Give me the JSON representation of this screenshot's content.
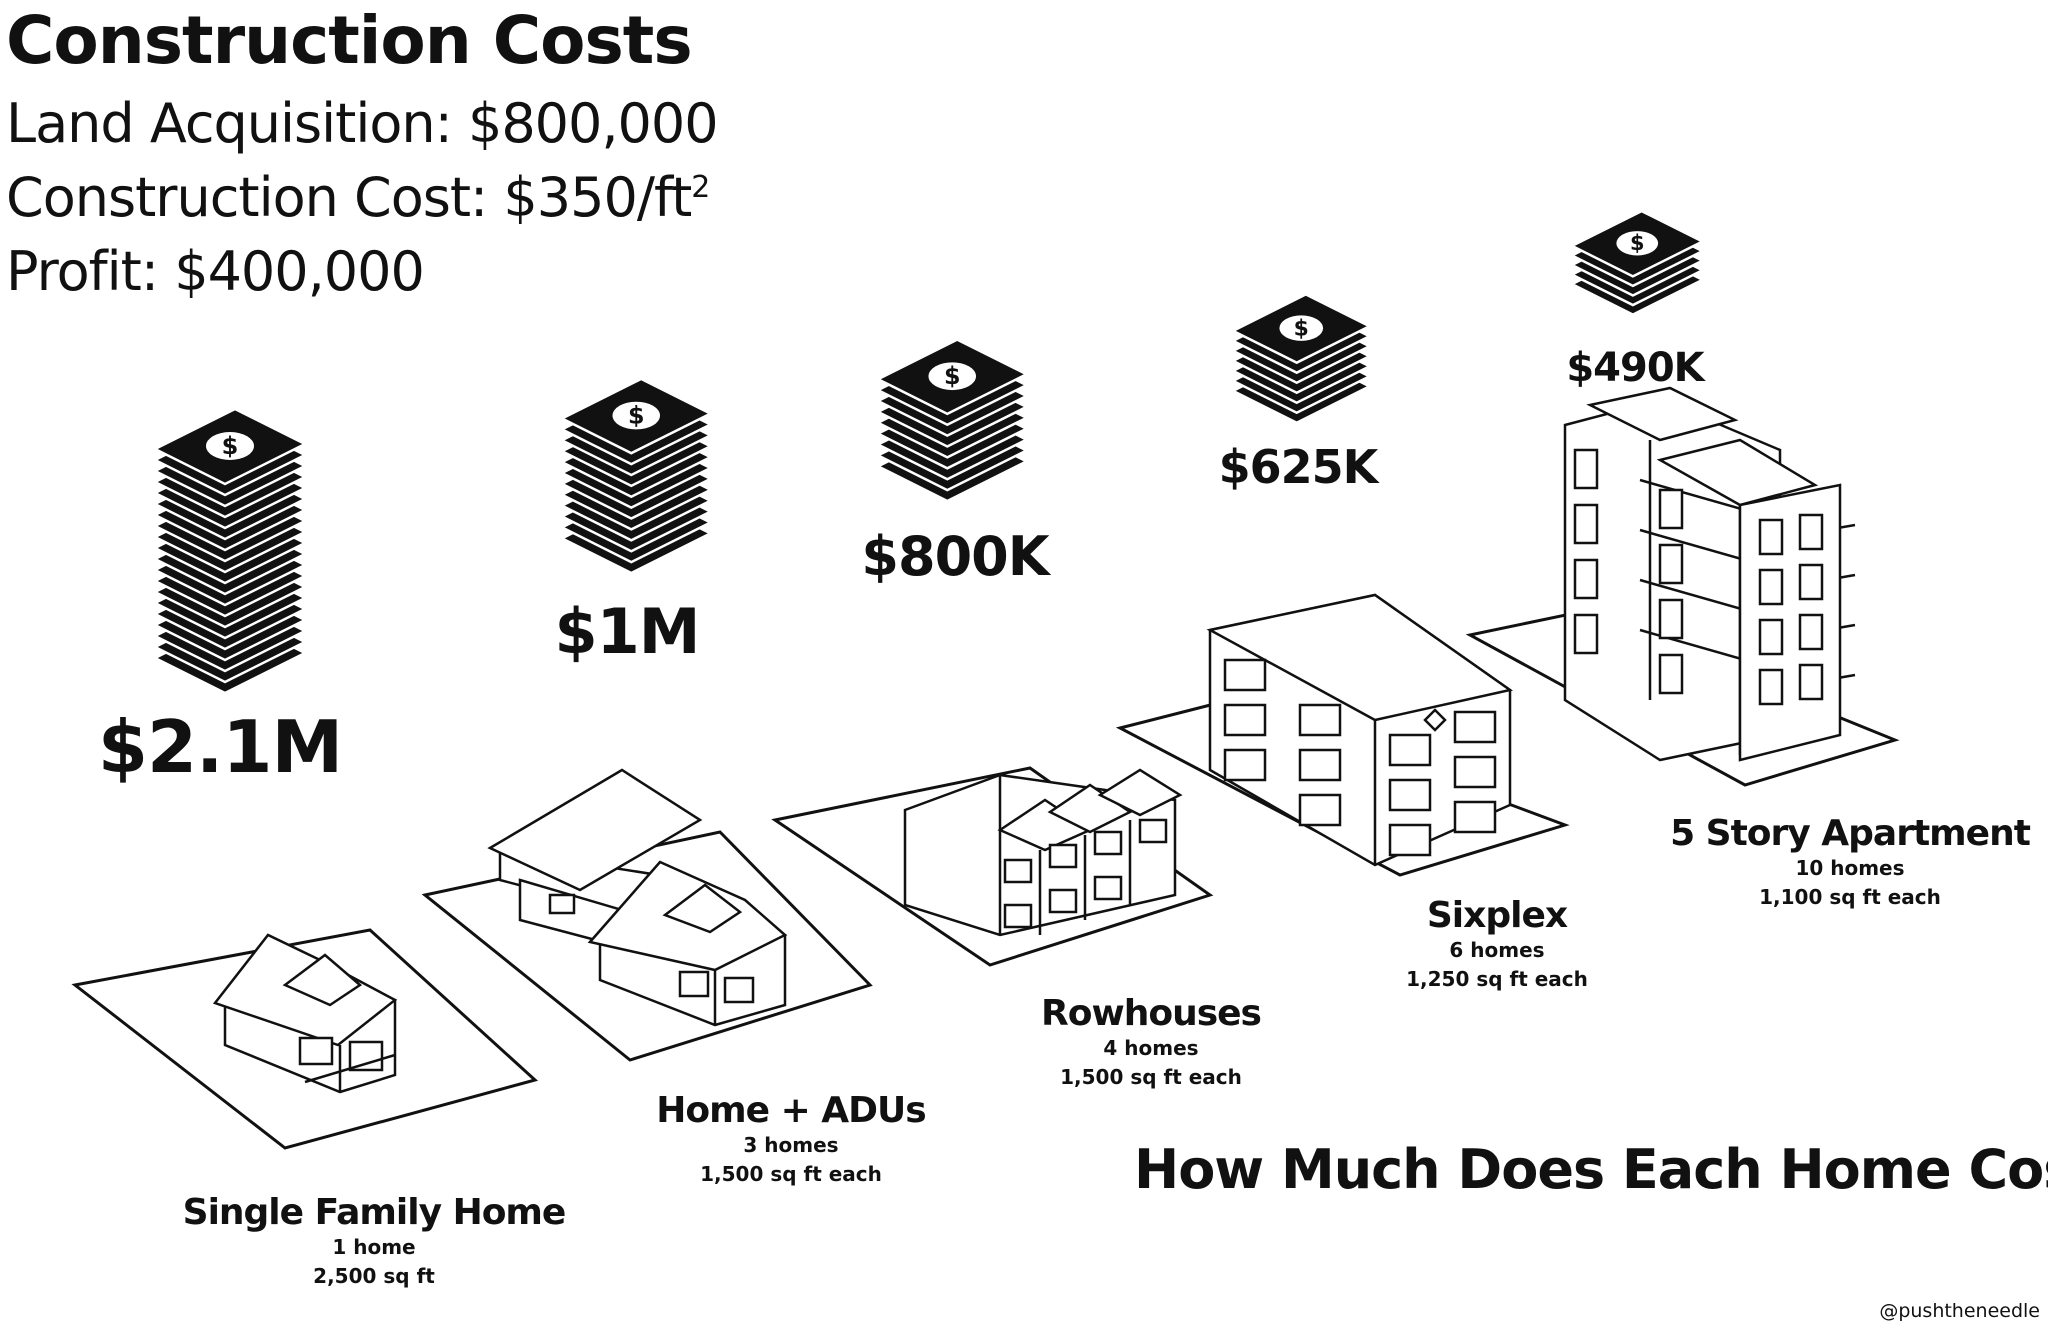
{
  "header": {
    "title": "Construction Costs",
    "land": "Land Acquisition: $800,000",
    "construction": "Construction Cost: $350/ft",
    "construction_sup": "2",
    "profit": "Profit: $400,000"
  },
  "buildings": [
    {
      "name": "Single Family Home",
      "homes": "1 home",
      "size": "2,500 sq ft",
      "price": "$2.1M",
      "bills": 20
    },
    {
      "name": "Home + ADUs",
      "homes": "3 homes",
      "size": "1,500 sq ft each",
      "price": "$1M",
      "bills": 12
    },
    {
      "name": "Rowhouses",
      "homes": "4 homes",
      "size": "1,500 sq ft each",
      "price": "$800K",
      "bills": 9
    },
    {
      "name": "Sixplex",
      "homes": "6 homes",
      "size": "1,250 sq ft each",
      "price": "$625K",
      "bills": 7
    },
    {
      "name": "5 Story Apartment",
      "homes": "10 homes",
      "size": "1,100 sq ft each",
      "price": "$490K",
      "bills": 5
    }
  ],
  "question": "How Much Does Each Home Cost?",
  "credit": "@pushtheneedle",
  "icons": {
    "money": "money-stack-icon",
    "dollar": "dollar-sign-icon"
  }
}
